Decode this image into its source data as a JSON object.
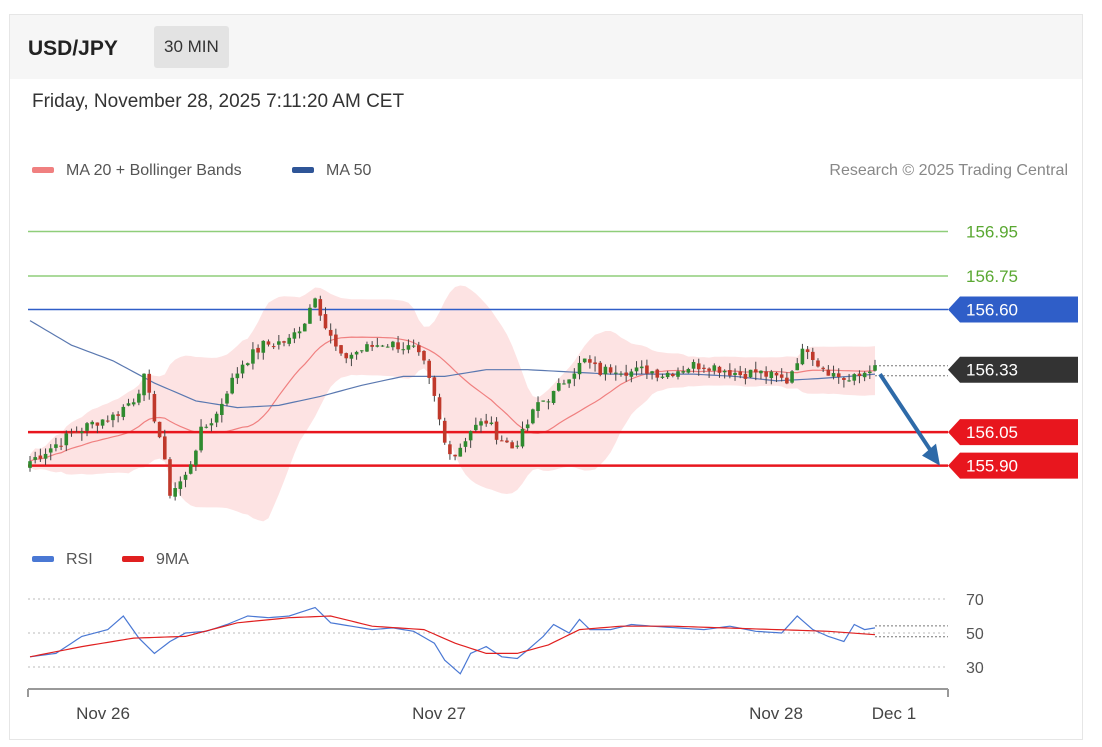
{
  "header": {
    "symbol": "USD/JPY",
    "timeframe": "30 MIN"
  },
  "datetime": "Friday, November 28, 2025 7:11:20 AM CET",
  "legend": {
    "ma20": {
      "label": "MA 20 + Bollinger Bands",
      "color": "#f08080"
    },
    "ma50": {
      "label": "MA 50",
      "color": "#2f5597"
    }
  },
  "credit": "Research © 2025 Trading Central",
  "colors": {
    "resistance": "#8fce7a",
    "resistance_text": "#5aa832",
    "pivot": "#2f5ec8",
    "support": "#e8161e",
    "current": "#333333",
    "arrow": "#2e6aa8",
    "up_candle": "#2f8a2f",
    "down_candle": "#c0392b",
    "bb_fill": "#fde3e3",
    "rsi": "#4a78d4",
    "rsi_ma": "#e02020"
  },
  "chart_data": {
    "type": "candlestick",
    "ylim": [
      155.62,
      157.1
    ],
    "levels": [
      {
        "label": "156.95",
        "value": 156.95,
        "kind": "resistance"
      },
      {
        "label": "156.75",
        "value": 156.75,
        "kind": "resistance"
      },
      {
        "label": "156.60",
        "value": 156.6,
        "kind": "pivot"
      },
      {
        "label": "156.33",
        "value": 156.33,
        "kind": "current"
      },
      {
        "label": "156.05",
        "value": 156.05,
        "kind": "support"
      },
      {
        "label": "155.90",
        "value": 155.9,
        "kind": "support"
      }
    ],
    "x_ticks": [
      "Nov 26",
      "Nov 27",
      "Nov 28",
      "Dec 1"
    ],
    "forecast_arrow": {
      "from": 156.31,
      "to": 155.9
    },
    "price_anchors": [
      [
        0,
        155.92
      ],
      [
        4,
        155.98
      ],
      [
        8,
        156.04
      ],
      [
        13,
        156.1
      ],
      [
        16,
        156.12
      ],
      [
        20,
        156.2
      ],
      [
        22,
        156.29
      ],
      [
        25,
        156.03
      ],
      [
        27,
        155.78
      ],
      [
        30,
        155.85
      ],
      [
        33,
        156.05
      ],
      [
        36,
        156.13
      ],
      [
        38,
        156.24
      ],
      [
        41,
        156.36
      ],
      [
        45,
        156.44
      ],
      [
        50,
        156.46
      ],
      [
        53,
        156.55
      ],
      [
        55,
        156.67
      ],
      [
        57,
        156.52
      ],
      [
        60,
        156.38
      ],
      [
        64,
        156.42
      ],
      [
        68,
        156.45
      ],
      [
        71,
        156.44
      ],
      [
        74,
        156.42
      ],
      [
        76,
        156.35
      ],
      [
        78,
        156.2
      ],
      [
        80,
        156.0
      ],
      [
        82,
        155.95
      ],
      [
        85,
        156.06
      ],
      [
        88,
        156.1
      ],
      [
        90,
        156.04
      ],
      [
        93,
        155.98
      ],
      [
        95,
        156.04
      ],
      [
        98,
        156.18
      ],
      [
        101,
        156.22
      ],
      [
        104,
        156.31
      ],
      [
        107,
        156.37
      ],
      [
        110,
        156.32
      ],
      [
        113,
        156.34
      ],
      [
        116,
        156.32
      ],
      [
        119,
        156.33
      ],
      [
        122,
        156.31
      ],
      [
        125,
        156.33
      ],
      [
        128,
        156.35
      ],
      [
        131,
        156.35
      ],
      [
        134,
        156.33
      ],
      [
        137,
        156.31
      ],
      [
        140,
        156.32
      ],
      [
        143,
        156.3
      ],
      [
        146,
        156.28
      ],
      [
        148,
        156.38
      ],
      [
        150,
        156.43
      ],
      [
        152,
        156.36
      ],
      [
        155,
        156.31
      ],
      [
        158,
        156.28
      ],
      [
        160,
        156.3
      ],
      [
        162,
        156.34
      ],
      [
        163,
        156.33
      ]
    ],
    "ma50_anchors": [
      [
        0,
        156.55
      ],
      [
        8,
        156.44
      ],
      [
        16,
        156.37
      ],
      [
        24,
        156.27
      ],
      [
        32,
        156.19
      ],
      [
        40,
        156.16
      ],
      [
        48,
        156.17
      ],
      [
        56,
        156.21
      ],
      [
        64,
        156.26
      ],
      [
        72,
        156.3
      ],
      [
        80,
        156.3
      ],
      [
        88,
        156.33
      ],
      [
        96,
        156.33
      ],
      [
        104,
        156.32
      ],
      [
        112,
        156.31
      ],
      [
        120,
        156.31
      ],
      [
        128,
        156.31
      ],
      [
        136,
        156.3
      ],
      [
        144,
        156.28
      ],
      [
        152,
        156.29
      ],
      [
        158,
        156.3
      ],
      [
        163,
        156.31
      ]
    ],
    "rsi": {
      "label": "RSI",
      "ma_label": "9MA",
      "levels": [
        70,
        50,
        30
      ],
      "ylim": [
        20,
        80
      ],
      "anchors": [
        [
          0,
          36
        ],
        [
          5,
          38
        ],
        [
          10,
          48
        ],
        [
          15,
          52
        ],
        [
          18,
          60
        ],
        [
          21,
          47
        ],
        [
          24,
          38
        ],
        [
          27,
          45
        ],
        [
          30,
          50
        ],
        [
          34,
          51
        ],
        [
          38,
          55
        ],
        [
          42,
          60
        ],
        [
          46,
          59
        ],
        [
          50,
          60
        ],
        [
          52,
          62
        ],
        [
          55,
          65
        ],
        [
          58,
          56
        ],
        [
          62,
          54
        ],
        [
          66,
          52
        ],
        [
          70,
          53
        ],
        [
          74,
          51
        ],
        [
          78,
          44
        ],
        [
          80,
          34
        ],
        [
          83,
          26
        ],
        [
          85,
          38
        ],
        [
          88,
          42
        ],
        [
          91,
          36
        ],
        [
          94,
          35
        ],
        [
          96,
          40
        ],
        [
          99,
          48
        ],
        [
          101,
          55
        ],
        [
          104,
          50
        ],
        [
          106,
          58
        ],
        [
          108,
          52
        ],
        [
          112,
          52
        ],
        [
          116,
          55
        ],
        [
          120,
          54
        ],
        [
          125,
          53
        ],
        [
          130,
          52
        ],
        [
          135,
          54
        ],
        [
          140,
          51
        ],
        [
          145,
          50
        ],
        [
          148,
          60
        ],
        [
          151,
          52
        ],
        [
          154,
          48
        ],
        [
          157,
          45
        ],
        [
          159,
          55
        ],
        [
          161,
          52
        ],
        [
          163,
          53
        ]
      ],
      "ma_anchors": [
        [
          0,
          36
        ],
        [
          10,
          42
        ],
        [
          20,
          47
        ],
        [
          30,
          48
        ],
        [
          40,
          56
        ],
        [
          50,
          59
        ],
        [
          58,
          60
        ],
        [
          66,
          54
        ],
        [
          76,
          52
        ],
        [
          82,
          44
        ],
        [
          88,
          38
        ],
        [
          94,
          38
        ],
        [
          100,
          43
        ],
        [
          106,
          52
        ],
        [
          114,
          54
        ],
        [
          124,
          54
        ],
        [
          134,
          53
        ],
        [
          144,
          52
        ],
        [
          154,
          51
        ],
        [
          163,
          49
        ]
      ]
    }
  }
}
